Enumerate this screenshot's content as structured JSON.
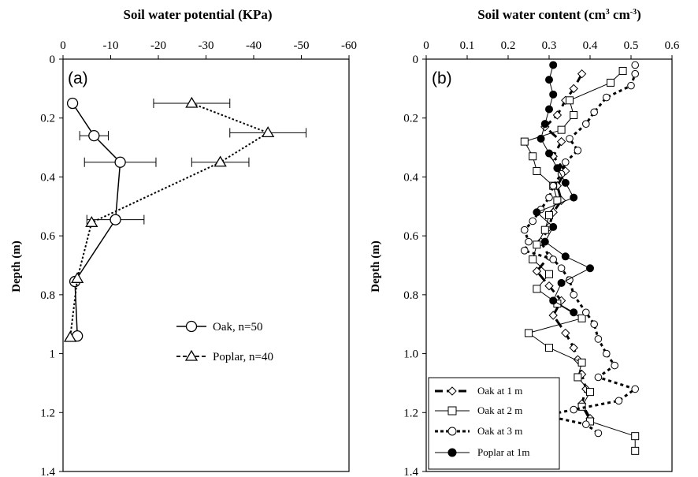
{
  "chart_data": [
    {
      "type": "line",
      "panel_label": "(a)",
      "title": "Soil water potential (KPa)",
      "ylabel": "Depth (m)",
      "x_ticks": [
        "0",
        "-10",
        "-20",
        "-30",
        "-40",
        "-50",
        "-60"
      ],
      "y_ticks": [
        "0",
        "0.2",
        "0.4",
        "0.6",
        "0.8",
        "1",
        "1.2",
        "1.4"
      ],
      "xlim": [
        0,
        -60
      ],
      "ylim": [
        0,
        1.4
      ],
      "x_axis_position": "top",
      "y_inverted": true,
      "legend_position": "lower-right",
      "series": [
        {
          "name": "Oak, n=50",
          "style": "solid",
          "marker": "circle",
          "points": [
            [
              -2.0,
              0.15
            ],
            [
              -6.5,
              0.26
            ],
            [
              -12.0,
              0.35
            ],
            [
              -11.0,
              0.545
            ],
            [
              -2.5,
              0.755
            ],
            [
              -3.0,
              0.94
            ]
          ],
          "x_error": [
            0.5,
            3.0,
            7.5,
            6.0,
            0.5,
            0
          ]
        },
        {
          "name": "Poplar, n=40",
          "style": "dotted",
          "marker": "triangle",
          "points": [
            [
              -27.0,
              0.15
            ],
            [
              -43.0,
              0.25
            ],
            [
              -33.0,
              0.35
            ],
            [
              -6.0,
              0.555
            ],
            [
              -3.0,
              0.745
            ],
            [
              -1.5,
              0.945
            ]
          ],
          "x_error": [
            8.0,
            8.0,
            6.0,
            0,
            0,
            0
          ]
        }
      ]
    },
    {
      "type": "line",
      "panel_label": "(b)",
      "title_main": "Soil water content (cm",
      "title_exp1": "3",
      "title_mid": " cm",
      "title_exp2": "-3",
      "title_end": ")",
      "ylabel": "Depth (m)",
      "x_ticks": [
        "0",
        "0.1",
        "0.2",
        "0.3",
        "0.4",
        "0.5",
        "0.6"
      ],
      "y_ticks": [
        "0",
        "0.2",
        "0.4",
        "0.6",
        "0.8",
        "1.0",
        "1.2",
        "1.4"
      ],
      "xlim": [
        0,
        0.6
      ],
      "ylim": [
        0,
        1.4
      ],
      "x_axis_position": "top",
      "y_inverted": true,
      "legend_position": "lower-left",
      "series": [
        {
          "name": "Oak at 1 m",
          "style": "thick-dash",
          "marker": "diamond",
          "points": [
            [
              0.38,
              0.05
            ],
            [
              0.36,
              0.1
            ],
            [
              0.34,
              0.14
            ],
            [
              0.32,
              0.19
            ],
            [
              0.29,
              0.23
            ],
            [
              0.33,
              0.28
            ],
            [
              0.31,
              0.33
            ],
            [
              0.34,
              0.38
            ],
            [
              0.32,
              0.43
            ],
            [
              0.33,
              0.48
            ],
            [
              0.31,
              0.52
            ],
            [
              0.3,
              0.57
            ],
            [
              0.28,
              0.62
            ],
            [
              0.3,
              0.67
            ],
            [
              0.27,
              0.72
            ],
            [
              0.3,
              0.77
            ],
            [
              0.33,
              0.82
            ],
            [
              0.31,
              0.87
            ],
            [
              0.34,
              0.93
            ],
            [
              0.36,
              0.98
            ],
            [
              0.37,
              1.02
            ],
            [
              0.38,
              1.07
            ],
            [
              0.39,
              1.12
            ],
            [
              0.38,
              1.17
            ],
            [
              0.4,
              1.22
            ]
          ]
        },
        {
          "name": "Oak at 2 m",
          "style": "thin-solid",
          "marker": "square",
          "points": [
            [
              0.48,
              0.04
            ],
            [
              0.45,
              0.08
            ],
            [
              0.35,
              0.14
            ],
            [
              0.36,
              0.19
            ],
            [
              0.33,
              0.24
            ],
            [
              0.24,
              0.28
            ],
            [
              0.26,
              0.33
            ],
            [
              0.27,
              0.38
            ],
            [
              0.31,
              0.43
            ],
            [
              0.32,
              0.48
            ],
            [
              0.3,
              0.53
            ],
            [
              0.29,
              0.58
            ],
            [
              0.27,
              0.63
            ],
            [
              0.26,
              0.68
            ],
            [
              0.3,
              0.73
            ],
            [
              0.27,
              0.78
            ],
            [
              0.32,
              0.83
            ],
            [
              0.38,
              0.88
            ],
            [
              0.25,
              0.93
            ],
            [
              0.3,
              0.98
            ],
            [
              0.38,
              1.03
            ],
            [
              0.37,
              1.08
            ],
            [
              0.4,
              1.13
            ],
            [
              0.38,
              1.18
            ],
            [
              0.4,
              1.23
            ],
            [
              0.51,
              1.28
            ],
            [
              0.51,
              1.33
            ]
          ]
        },
        {
          "name": "Oak at 3 m",
          "style": "thick-dot",
          "marker": "circle",
          "points": [
            [
              0.51,
              0.02
            ],
            [
              0.51,
              0.05
            ],
            [
              0.5,
              0.09
            ],
            [
              0.44,
              0.13
            ],
            [
              0.41,
              0.18
            ],
            [
              0.39,
              0.22
            ],
            [
              0.35,
              0.27
            ],
            [
              0.37,
              0.31
            ],
            [
              0.34,
              0.35
            ],
            [
              0.33,
              0.39
            ],
            [
              0.31,
              0.43
            ],
            [
              0.3,
              0.47
            ],
            [
              0.28,
              0.51
            ],
            [
              0.26,
              0.55
            ],
            [
              0.24,
              0.58
            ],
            [
              0.25,
              0.62
            ],
            [
              0.24,
              0.65
            ],
            [
              0.31,
              0.68
            ],
            [
              0.33,
              0.71
            ],
            [
              0.35,
              0.75
            ],
            [
              0.36,
              0.8
            ],
            [
              0.39,
              0.86
            ],
            [
              0.41,
              0.9
            ],
            [
              0.42,
              0.95
            ],
            [
              0.44,
              1.0
            ],
            [
              0.46,
              1.04
            ],
            [
              0.42,
              1.08
            ],
            [
              0.51,
              1.12
            ],
            [
              0.47,
              1.16
            ],
            [
              0.36,
              1.19
            ],
            [
              0.29,
              1.21
            ],
            [
              0.39,
              1.24
            ],
            [
              0.42,
              1.27
            ]
          ]
        },
        {
          "name": "Poplar at 1m",
          "style": "thin-solid",
          "marker": "filled-circle",
          "points": [
            [
              0.31,
              0.02
            ],
            [
              0.3,
              0.07
            ],
            [
              0.31,
              0.12
            ],
            [
              0.3,
              0.17
            ],
            [
              0.29,
              0.22
            ],
            [
              0.28,
              0.27
            ],
            [
              0.3,
              0.32
            ],
            [
              0.32,
              0.37
            ],
            [
              0.34,
              0.42
            ],
            [
              0.36,
              0.47
            ],
            [
              0.27,
              0.52
            ],
            [
              0.31,
              0.57
            ],
            [
              0.29,
              0.62
            ],
            [
              0.34,
              0.67
            ],
            [
              0.4,
              0.71
            ],
            [
              0.33,
              0.76
            ],
            [
              0.31,
              0.82
            ],
            [
              0.36,
              0.86
            ]
          ]
        }
      ]
    }
  ]
}
